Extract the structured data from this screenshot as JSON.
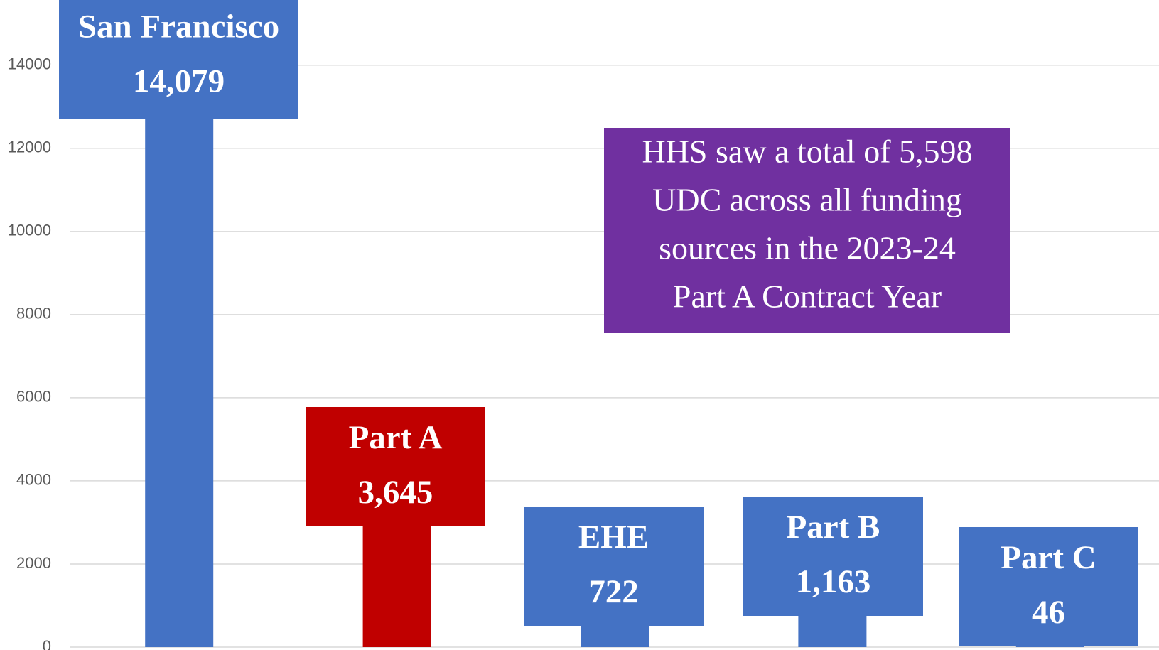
{
  "chart_data": {
    "type": "bar",
    "categories": [
      "San Francisco",
      "Part A",
      "EHE",
      "Part B",
      "Part C"
    ],
    "values": [
      14079,
      3645,
      722,
      1163,
      46
    ],
    "value_labels": [
      "14,079",
      "3,645",
      "722",
      "1,163",
      "46"
    ],
    "colors": [
      "#4472c4",
      "#c00000",
      "#4472c4",
      "#4472c4",
      "#4472c4"
    ],
    "ylim": [
      0,
      15500
    ],
    "yticks": [
      0,
      2000,
      4000,
      6000,
      8000,
      10000,
      12000,
      14000
    ],
    "grid": true,
    "annotation": [
      "HHS saw a total of 5,598",
      "UDC across all funding",
      "sources in the 2023-24",
      "Part A Contract Year"
    ],
    "annotation_color": "#7030a0"
  }
}
